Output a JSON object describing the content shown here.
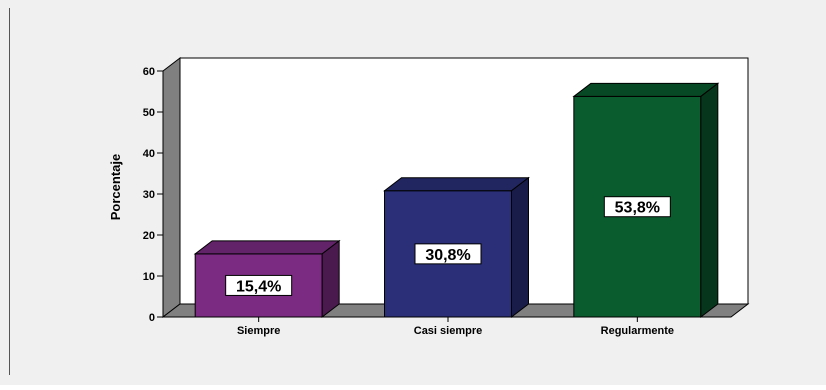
{
  "chart_data": {
    "type": "bar",
    "title": "",
    "xlabel": "",
    "ylabel": "Porcentaje",
    "categories": [
      "Siempre",
      "Casi siempre",
      "Regularmente"
    ],
    "values": [
      15.4,
      30.8,
      53.8
    ],
    "data_labels": [
      "15,4%",
      "30,8%",
      "53,8%"
    ],
    "ylim": [
      0,
      60
    ],
    "yticks": [
      "0",
      "10",
      "20",
      "30",
      "40",
      "50",
      "60"
    ],
    "grid": false,
    "legend": "none",
    "three_d": true,
    "colors": {
      "background": "#f0f0f0",
      "plot_area": "#ffffff",
      "walls": "#808080",
      "bars": [
        "#7b2c82",
        "#2a2f78",
        "#0a5b2e"
      ]
    }
  }
}
